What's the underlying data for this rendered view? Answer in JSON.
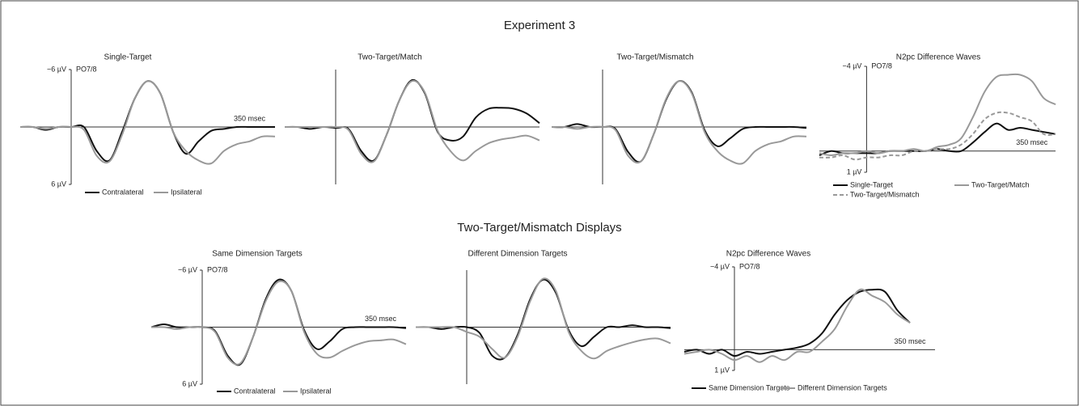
{
  "headings": [
    "Experiment 3",
    "Two-Target/Mismatch Displays"
  ],
  "chart_data": [
    {
      "type": "line",
      "title": "Single-Target",
      "annotation": "PO7/8",
      "x": [
        -100,
        -75,
        -50,
        -25,
        0,
        25,
        50,
        75,
        100,
        125,
        150,
        175,
        200,
        225,
        250,
        275,
        300,
        325,
        350,
        375,
        400
      ],
      "xlim": [
        -100,
        400
      ],
      "ylim": [
        6,
        -6
      ],
      "yticks": [
        {
          "value": -6,
          "label": "−6 µV"
        },
        {
          "value": 6,
          "label": "6 µV"
        }
      ],
      "xticks": [
        {
          "value": 350,
          "label": "350 msec"
        }
      ],
      "series": [
        {
          "name": "Contralateral",
          "color": "#111111",
          "values": [
            0,
            0,
            0.3,
            0,
            0,
            0,
            2.5,
            3.5,
            0.5,
            -3,
            -4.8,
            -3.5,
            0.5,
            2.8,
            1.5,
            0.4,
            0.2,
            0,
            0,
            0,
            0
          ]
        },
        {
          "name": "Ipsilateral",
          "color": "#999999",
          "values": [
            0,
            0,
            0.2,
            0,
            0,
            0.3,
            3,
            3.6,
            0.8,
            -3,
            -4.8,
            -3.5,
            0.5,
            2.5,
            3.5,
            3.8,
            2.5,
            1.8,
            1.5,
            1,
            1
          ]
        }
      ]
    },
    {
      "type": "line",
      "title": "Two-Target/Match",
      "x": [
        -100,
        -75,
        -50,
        -25,
        0,
        25,
        50,
        75,
        100,
        125,
        150,
        175,
        200,
        225,
        250,
        275,
        300,
        325,
        350,
        375,
        400
      ],
      "xlim": [
        -100,
        400
      ],
      "ylim": [
        6,
        -6
      ],
      "series": [
        {
          "color": "#111111",
          "values": [
            0,
            0,
            0.2,
            0,
            0.1,
            0.2,
            2.5,
            3.5,
            0.8,
            -2.8,
            -4.9,
            -3.5,
            0.5,
            1.4,
            1,
            -1,
            -1.9,
            -2,
            -1.9,
            -1.4,
            -0.4
          ]
        },
        {
          "color": "#999999",
          "values": [
            0,
            0,
            0,
            0,
            0,
            0.3,
            2.8,
            3.6,
            0.8,
            -2.8,
            -4.8,
            -3.6,
            0.4,
            2.5,
            3.5,
            2.5,
            1.7,
            1.3,
            1.1,
            0.9,
            1.4
          ]
        }
      ]
    },
    {
      "type": "line",
      "title": "Two-Target/Mismatch",
      "x": [
        -100,
        -75,
        -50,
        -25,
        0,
        25,
        50,
        75,
        100,
        125,
        150,
        175,
        200,
        225,
        250,
        275,
        300,
        325,
        350,
        375,
        400
      ],
      "xlim": [
        -100,
        400
      ],
      "ylim": [
        6,
        -6
      ],
      "series": [
        {
          "color": "#111111",
          "values": [
            0,
            0,
            -0.3,
            0,
            0,
            0.2,
            2.6,
            3.6,
            0.8,
            -2.9,
            -4.8,
            -3.6,
            0.3,
            2,
            1.2,
            0.2,
            0,
            0,
            0,
            0,
            0.1
          ]
        },
        {
          "color": "#999999",
          "values": [
            0,
            0,
            0.2,
            0,
            0,
            0.3,
            3,
            3.6,
            0.8,
            -3,
            -4.8,
            -3.5,
            0.5,
            2.5,
            3.5,
            3.8,
            2.5,
            1.8,
            1.5,
            1,
            1
          ]
        }
      ]
    },
    {
      "type": "line",
      "title": "N2pc Difference Waves",
      "annotation": "PO7/8",
      "x": [
        -100,
        -75,
        -50,
        -25,
        0,
        25,
        50,
        75,
        100,
        125,
        150,
        175,
        200,
        225,
        250,
        275,
        300,
        325,
        350,
        375,
        400
      ],
      "xlim": [
        -100,
        400
      ],
      "ylim": [
        1,
        -4
      ],
      "yticks": [
        {
          "value": -4,
          "label": "−4 µV"
        },
        {
          "value": 1,
          "label": "1 µV"
        }
      ],
      "xticks": [
        {
          "value": 350,
          "label": "350 msec"
        }
      ],
      "series": [
        {
          "name": "Single-Target",
          "color": "#111111",
          "values": [
            0.2,
            0,
            0.1,
            0.1,
            0.1,
            0.1,
            0,
            0,
            0,
            0,
            -0.1,
            0,
            0,
            -0.4,
            -0.9,
            -1.3,
            -1,
            -1.1,
            -1,
            -0.9,
            -0.8
          ]
        },
        {
          "name": "Two-Target/Match",
          "color": "#999999",
          "values": [
            0.1,
            0.2,
            0.1,
            0.1,
            0,
            0.1,
            0,
            0,
            -0.1,
            0,
            -0.2,
            -0.3,
            -0.6,
            -1.6,
            -2.8,
            -3.5,
            -3.6,
            -3.6,
            -3.3,
            -2.5,
            -2.2
          ]
        },
        {
          "name": "Two-Target/Mismatch",
          "color": "#999999",
          "dash": true,
          "values": [
            0.3,
            0.3,
            0.2,
            0.4,
            0.3,
            0.3,
            0.2,
            0.2,
            0,
            0,
            -0.1,
            -0.1,
            -0.3,
            -0.8,
            -1.5,
            -1.8,
            -1.8,
            -1.6,
            -1.4,
            -0.8,
            -0.8
          ]
        }
      ]
    },
    {
      "type": "line",
      "title": "Same Dimension Targets",
      "annotation": "PO7/8",
      "x": [
        -100,
        -75,
        -50,
        -25,
        0,
        25,
        50,
        75,
        100,
        125,
        150,
        175,
        200,
        225,
        250,
        275,
        300,
        325,
        350,
        375,
        400
      ],
      "xlim": [
        -100,
        400
      ],
      "ylim": [
        6,
        -6
      ],
      "yticks": [
        {
          "value": -6,
          "label": "−6 µV"
        },
        {
          "value": 6,
          "label": "6 µV"
        }
      ],
      "xticks": [
        {
          "value": 350,
          "label": "350 msec"
        }
      ],
      "series": [
        {
          "name": "Contralateral",
          "color": "#111111",
          "values": [
            0,
            -0.3,
            0,
            0,
            0,
            0.4,
            3,
            3.9,
            1,
            -3,
            -5,
            -3.8,
            0.3,
            2.3,
            1.5,
            0.2,
            0,
            0,
            0,
            0,
            0.1
          ]
        },
        {
          "name": "Ipsilateral",
          "color": "#999999",
          "values": [
            0,
            0,
            0.2,
            0,
            0,
            0.5,
            3.2,
            3.8,
            1,
            -2.8,
            -4.8,
            -3.8,
            0.5,
            2.8,
            3.2,
            2.5,
            1.9,
            1.5,
            1.4,
            1.3,
            1.8
          ]
        }
      ]
    },
    {
      "type": "line",
      "title": "Different Dimension Targets",
      "x": [
        -100,
        -75,
        -50,
        -25,
        0,
        25,
        50,
        75,
        100,
        125,
        150,
        175,
        200,
        225,
        250,
        275,
        300,
        325,
        350,
        375,
        400
      ],
      "xlim": [
        -100,
        400
      ],
      "ylim": [
        6,
        -6
      ],
      "series": [
        {
          "color": "#111111",
          "values": [
            0,
            0,
            0.2,
            0,
            0,
            0.6,
            3,
            3.2,
            0.8,
            -3,
            -5,
            -3.6,
            0.3,
            2,
            1,
            0,
            0,
            -0.2,
            0,
            0,
            0.1
          ]
        },
        {
          "color": "#999999",
          "values": [
            0,
            0,
            0,
            0,
            0.5,
            1,
            2.3,
            3.2,
            1,
            -2.8,
            -5.1,
            -3.8,
            0.5,
            2.5,
            3.3,
            2.5,
            2,
            1.6,
            1.3,
            1.2,
            1.7
          ]
        }
      ]
    },
    {
      "type": "line",
      "title": "N2pc Difference Waves",
      "annotation": "PO7/8",
      "x": [
        -100,
        -75,
        -50,
        -25,
        0,
        25,
        50,
        75,
        100,
        125,
        150,
        175,
        200,
        225,
        250,
        275,
        300,
        325,
        350
      ],
      "xlim": [
        -100,
        400
      ],
      "ylim": [
        1,
        -4
      ],
      "yticks": [
        {
          "value": -4,
          "label": "−4 µV"
        },
        {
          "value": 1,
          "label": "1 µV"
        }
      ],
      "xticks": [
        {
          "value": 350,
          "label": "350 msec"
        }
      ],
      "series": [
        {
          "name": "Same Dimension Targets",
          "color": "#111111",
          "values": [
            0.1,
            0,
            0.2,
            0,
            0.3,
            0.1,
            0.2,
            0.1,
            0,
            -0.1,
            -0.3,
            -0.8,
            -1.7,
            -2.4,
            -2.8,
            -2.9,
            -2.8,
            -1.9,
            -1.3
          ]
        },
        {
          "name": "Different Dimension Targets",
          "color": "#999999",
          "values": [
            0.2,
            0.1,
            0,
            0.2,
            0.5,
            0.3,
            0.6,
            0.3,
            0.5,
            0.1,
            0.1,
            -0.4,
            -1,
            -2.1,
            -2.9,
            -2.6,
            -2.3,
            -1.7,
            -1.3
          ]
        }
      ]
    }
  ]
}
